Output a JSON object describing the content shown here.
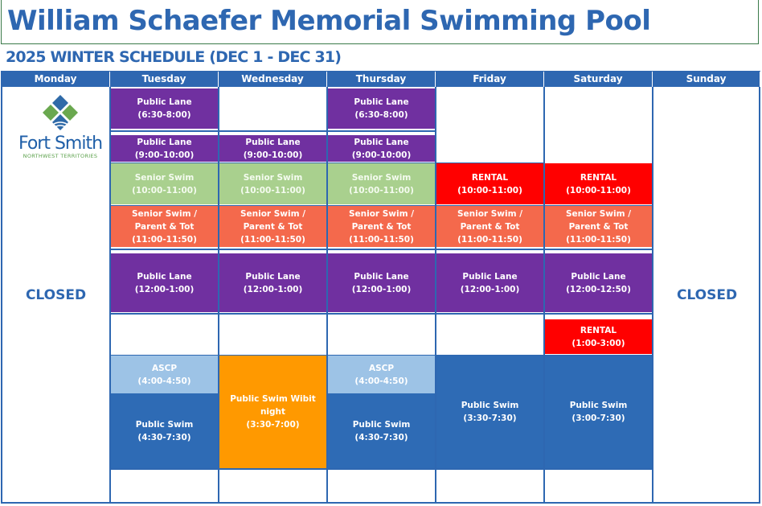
{
  "header": {
    "title": "William Schaefer Memorial Swimming Pool",
    "subtitle": "2025 WINTER SCHEDULE (DEC 1 - DEC 31)"
  },
  "logo": {
    "name": "Fort Smith",
    "region": "NORTHWEST TERRITORIES"
  },
  "days": [
    "Monday",
    "Tuesday",
    "Wednesday",
    "Thursday",
    "Friday",
    "Saturday",
    "Sunday"
  ],
  "closed_label": "CLOSED",
  "colors": {
    "purple": "#7030a0",
    "green": "#a9d08e",
    "coral": "#f4694c",
    "red": "#ff0000",
    "lightblue": "#9dc3e6",
    "blue": "#2e6bb5",
    "orange": "#ff9900",
    "accent": "#2e67b1"
  },
  "blocks": [
    {
      "day": "Tuesday",
      "lines": [
        "Public Lane",
        "(6:30-8:00)"
      ],
      "color": "purple"
    },
    {
      "day": "Thursday",
      "lines": [
        "Public Lane",
        "(6:30-8:00)"
      ],
      "color": "purple"
    },
    {
      "day": "Tuesday",
      "lines": [
        "Public Lane",
        "(9:00-10:00)"
      ],
      "color": "purple"
    },
    {
      "day": "Wednesday",
      "lines": [
        "Public Lane",
        "(9:00-10:00)"
      ],
      "color": "purple"
    },
    {
      "day": "Thursday",
      "lines": [
        "Public Lane",
        "(9:00-10:00)"
      ],
      "color": "purple"
    },
    {
      "day": "Tuesday",
      "lines": [
        "Senior Swim",
        "(10:00-11:00)"
      ],
      "color": "green"
    },
    {
      "day": "Wednesday",
      "lines": [
        "Senior Swim",
        "(10:00-11:00)"
      ],
      "color": "green"
    },
    {
      "day": "Thursday",
      "lines": [
        "Senior Swim",
        "(10:00-11:00)"
      ],
      "color": "green"
    },
    {
      "day": "Friday",
      "lines": [
        "RENTAL",
        "(10:00-11:00)"
      ],
      "color": "red"
    },
    {
      "day": "Saturday",
      "lines": [
        "RENTAL",
        "(10:00-11:00)"
      ],
      "color": "red"
    },
    {
      "day": "Tuesday",
      "lines": [
        "Senior Swim /",
        "Parent & Tot",
        "(11:00-11:50)"
      ],
      "color": "coral"
    },
    {
      "day": "Wednesday",
      "lines": [
        "Senior Swim /",
        "Parent & Tot",
        "(11:00-11:50)"
      ],
      "color": "coral"
    },
    {
      "day": "Thursday",
      "lines": [
        "Senior Swim /",
        "Parent & Tot",
        "(11:00-11:50)"
      ],
      "color": "coral"
    },
    {
      "day": "Friday",
      "lines": [
        "Senior Swim /",
        "Parent & Tot",
        "(11:00-11:50)"
      ],
      "color": "coral"
    },
    {
      "day": "Saturday",
      "lines": [
        "Senior Swim /",
        "Parent & Tot",
        "(11:00-11:50)"
      ],
      "color": "coral"
    },
    {
      "day": "Tuesday",
      "lines": [
        "Public Lane",
        "(12:00-1:00)"
      ],
      "color": "purple"
    },
    {
      "day": "Wednesday",
      "lines": [
        "Public Lane",
        "(12:00-1:00)"
      ],
      "color": "purple"
    },
    {
      "day": "Thursday",
      "lines": [
        "Public Lane",
        "(12:00-1:00)"
      ],
      "color": "purple"
    },
    {
      "day": "Friday",
      "lines": [
        "Public Lane",
        "(12:00-1:00)"
      ],
      "color": "purple"
    },
    {
      "day": "Saturday",
      "lines": [
        "Public Lane",
        "(12:00-12:50)"
      ],
      "color": "purple"
    },
    {
      "day": "Saturday",
      "lines": [
        "RENTAL",
        "(1:00-3:00)"
      ],
      "color": "red"
    },
    {
      "day": "Tuesday",
      "lines": [
        "ASCP",
        "(4:00-4:50)"
      ],
      "color": "lightblue"
    },
    {
      "day": "Tuesday",
      "lines": [
        "Public Swim",
        "(4:30-7:30)"
      ],
      "color": "blue"
    },
    {
      "day": "Wednesday",
      "lines": [
        "Public Swim Wibit night",
        "(3:30-7:00)"
      ],
      "color": "orange"
    },
    {
      "day": "Thursday",
      "lines": [
        "ASCP",
        "(4:00-4:50)"
      ],
      "color": "lightblue"
    },
    {
      "day": "Thursday",
      "lines": [
        "Public Swim",
        "(4:30-7:30)"
      ],
      "color": "blue"
    },
    {
      "day": "Friday",
      "lines": [
        "Public Swim",
        "(3:30-7:30)"
      ],
      "color": "blue"
    },
    {
      "day": "Saturday",
      "lines": [
        "Public Swim",
        "(3:00-7:30)"
      ],
      "color": "blue"
    }
  ]
}
